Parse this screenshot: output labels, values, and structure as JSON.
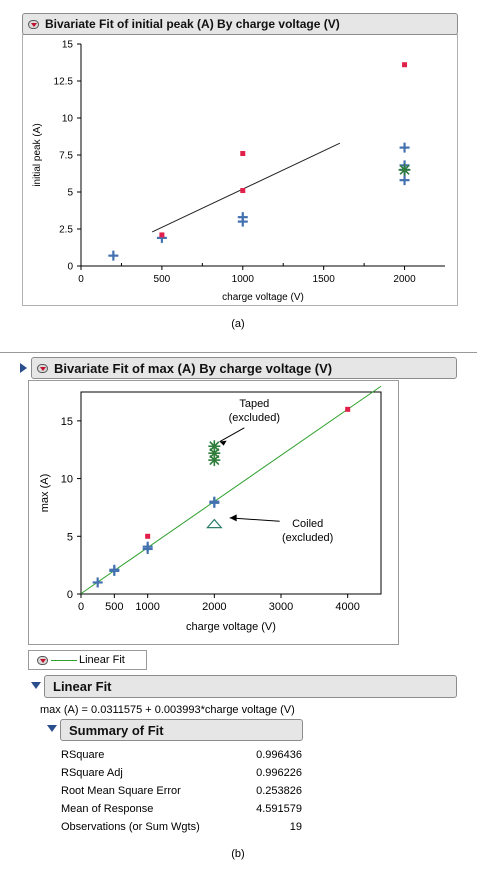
{
  "panel_a": {
    "title": "Bivariate Fit of initial peak (A) By charge voltage (V)",
    "caption": "(a)",
    "chart_data": {
      "type": "scatter",
      "xlabel": "charge voltage (V)",
      "ylabel": "initial peak (A)",
      "xlim": [
        0,
        2250
      ],
      "ylim": [
        0,
        15
      ],
      "xticks": [
        "0",
        "500",
        "1000",
        "1500",
        "2000"
      ],
      "yticks": [
        "0",
        "2.5",
        "5",
        "7.5",
        "10",
        "12.5",
        "15"
      ],
      "series": [
        {
          "marker": "plus",
          "color": "#4472b0",
          "x": [
            200,
            500,
            1000,
            1000,
            2000,
            2000,
            2000,
            2000
          ],
          "y": [
            0.7,
            1.9,
            3.0,
            3.3,
            5.8,
            6.8,
            6.5,
            8.0
          ]
        },
        {
          "marker": "square",
          "color": "#e0204a",
          "x": [
            500,
            1000,
            1000,
            2000
          ],
          "y": [
            2.1,
            5.1,
            7.6,
            13.6
          ]
        },
        {
          "marker": "asterisk",
          "color": "#2e7d3a",
          "x": [
            2000
          ],
          "y": [
            6.5
          ]
        }
      ],
      "fit_line": {
        "x": [
          440,
          1600
        ],
        "y": [
          2.3,
          8.3
        ],
        "color": "#222222"
      }
    }
  },
  "panel_b": {
    "title": "Bivariate Fit of max (A) By charge voltage (V)",
    "caption": "(b)",
    "chart_data": {
      "type": "scatter",
      "xlabel": "charge voltage (V)",
      "ylabel": "max (A)",
      "xlim": [
        0,
        4500
      ],
      "ylim": [
        0,
        17.5
      ],
      "xticks": [
        "0",
        "500",
        "1000",
        "2000",
        "3000",
        "4000"
      ],
      "yticks": [
        "0",
        "5",
        "10",
        "15"
      ],
      "series": [
        {
          "marker": "plus",
          "color": "#4472b0",
          "x": [
            250,
            500,
            500,
            1000,
            1000,
            2000,
            2000
          ],
          "y": [
            1.0,
            2.1,
            2.0,
            3.9,
            4.1,
            7.9,
            8.0
          ]
        },
        {
          "marker": "square",
          "color": "#e0204a",
          "x": [
            1000,
            4000
          ],
          "y": [
            5.0,
            16.0
          ]
        },
        {
          "marker": "asterisk",
          "color": "#2e7d3a",
          "x": [
            2000,
            2000,
            2000
          ],
          "y": [
            11.6,
            12.2,
            12.8
          ]
        },
        {
          "marker": "triangle",
          "color": "#2e7d6a",
          "x": [
            2000
          ],
          "y": [
            6.1
          ]
        }
      ],
      "fit_line": {
        "x": [
          0,
          4500
        ],
        "y": [
          0.0311575,
          17.999
        ],
        "color": "#2ca02c"
      },
      "annotations": [
        {
          "lines": [
            "Taped",
            "(excluded)"
          ]
        },
        {
          "lines": [
            "Coiled",
            "(excluded)"
          ]
        }
      ]
    },
    "legend_label": "Linear Fit",
    "linear_fit_header": "Linear Fit",
    "equation": "max (A) = 0.0311575 + 0.003993*charge voltage (V)",
    "summary_header": "Summary of Fit",
    "summary_rows": [
      {
        "label": "RSquare",
        "value": "0.996436"
      },
      {
        "label": "RSquare Adj",
        "value": "0.996226"
      },
      {
        "label": "Root Mean Square Error",
        "value": "0.253826"
      },
      {
        "label": "Mean of Response",
        "value": "4.591579"
      },
      {
        "label": "Observations (or Sum Wgts)",
        "value": "19"
      }
    ]
  }
}
